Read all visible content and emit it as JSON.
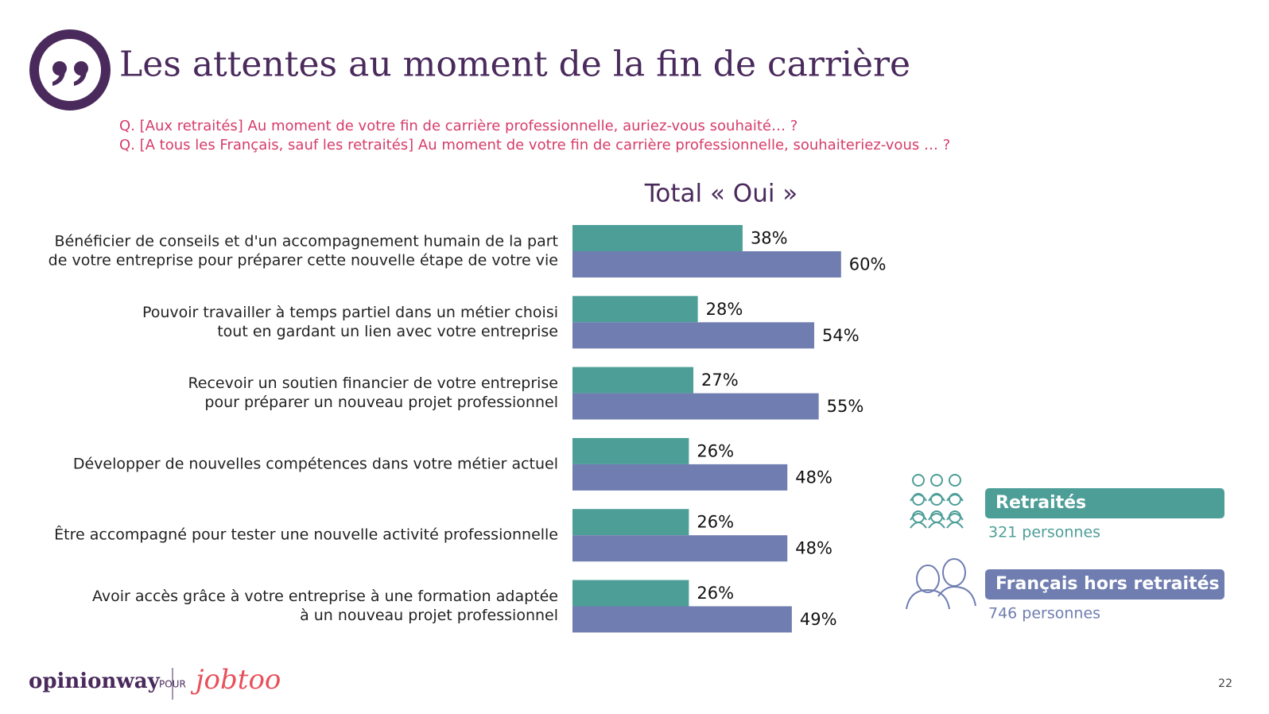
{
  "title": "Les attentes au moment de la fin de carrière",
  "questions": [
    "Q. [Aux retraités] Au moment de votre fin de carrière professionnelle, auriez-vous souhaité… ?",
    "Q. [A tous les Français, sauf les retraités] Au moment de votre fin de carrière professionnelle, souhaiteriez-vous … ?"
  ],
  "chart_data": {
    "type": "hbar",
    "title": "Total « Oui »",
    "categories": [
      [
        "Bénéficier de conseils et d'un accompagnement humain de la part",
        "de votre entreprise pour préparer cette nouvelle étape de votre vie"
      ],
      [
        "Pouvoir travailler à temps partiel dans un métier choisi",
        "tout en gardant un lien avec votre entreprise"
      ],
      [
        "Recevoir un soutien financier de votre entreprise",
        "pour préparer un nouveau projet professionnel"
      ],
      [
        "Développer de nouvelles compétences dans votre métier actuel"
      ],
      [
        "Être accompagné pour tester une nouvelle activité professionnelle"
      ],
      [
        "Avoir accès grâce à votre entreprise à une formation adaptée",
        "à un nouveau projet professionnel"
      ]
    ],
    "series": [
      {
        "name": "Retraités",
        "base": "321 personnes",
        "color": "#4e9e98",
        "values": [
          38,
          28,
          27,
          26,
          26,
          26
        ],
        "value_labels": [
          "38%",
          "28%",
          "27%",
          "26%",
          "26%",
          "26%"
        ]
      },
      {
        "name": "Français hors retraités",
        "base": "746 personnes",
        "color": "#6f7db0",
        "values": [
          60,
          54,
          55,
          48,
          48,
          49
        ],
        "value_labels": [
          "60%",
          "54%",
          "55%",
          "48%",
          "48%",
          "49%"
        ]
      }
    ]
  },
  "footer": {
    "brand": "opinionway",
    "connector": "POUR",
    "client": "jobtoo",
    "page": "22"
  }
}
